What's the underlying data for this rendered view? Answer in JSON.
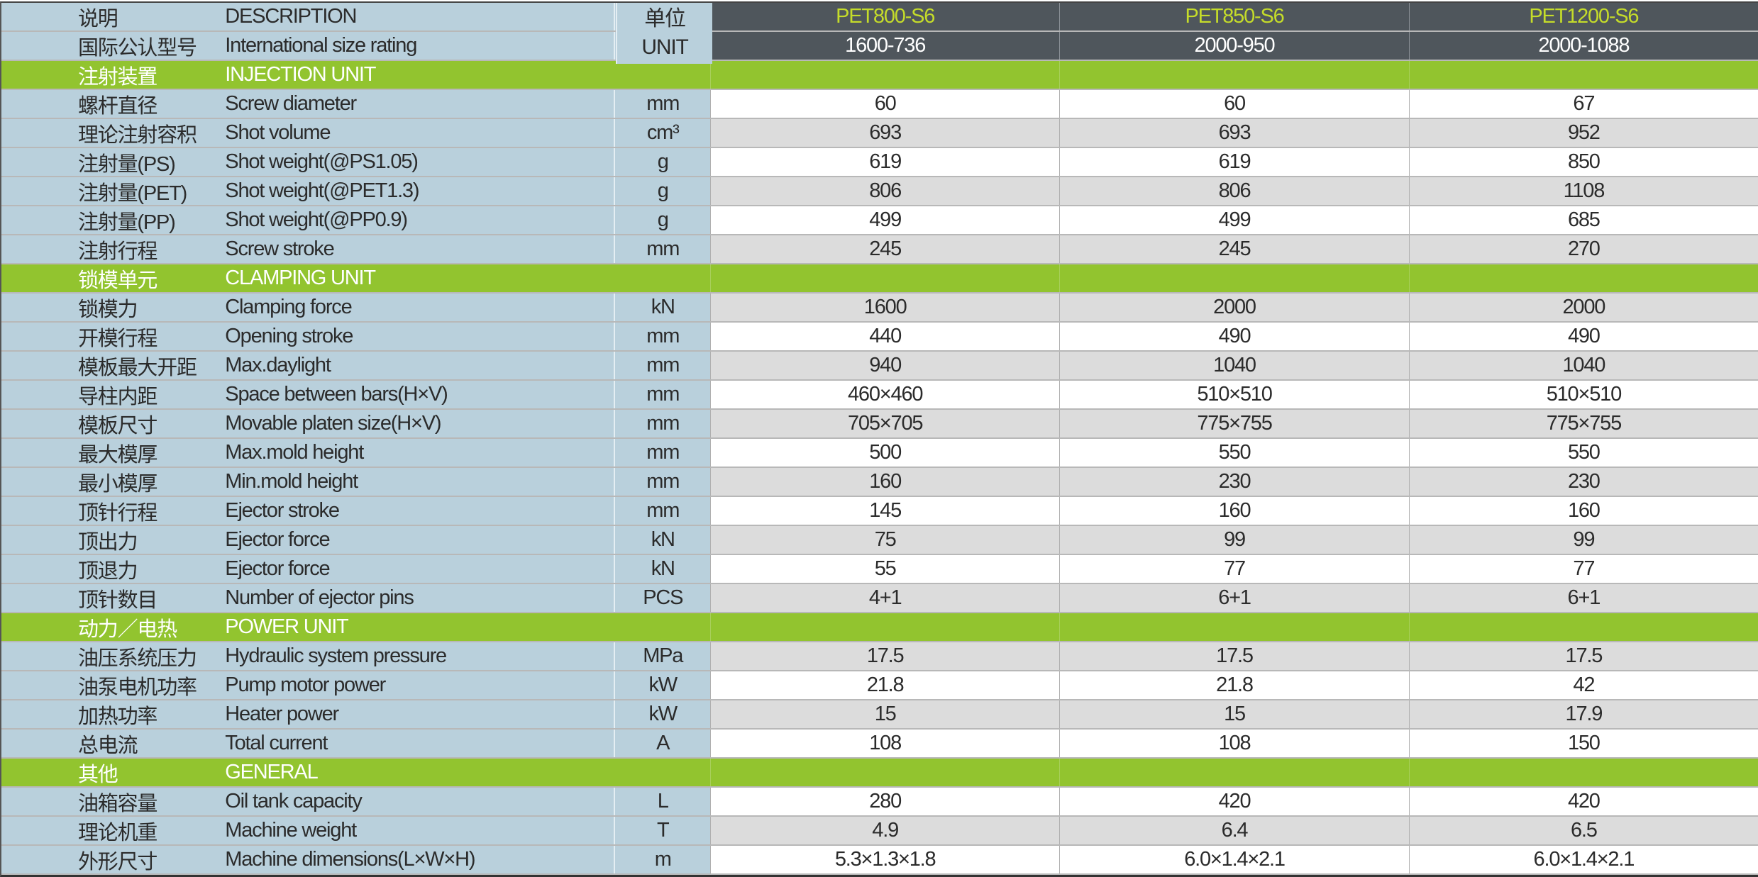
{
  "header": {
    "cn": "说明",
    "en": "DESCRIPTION",
    "unit_cn": "单位",
    "unit_en": "UNIT",
    "rating_cn": "国际公认型号",
    "rating_en": "International size rating",
    "models": [
      "PET800-S6",
      "PET850-S6",
      "PET1200-S6"
    ],
    "ratings": [
      "1600-736",
      "2000-950",
      "2000-1088"
    ]
  },
  "colors": {
    "label_bg": "#b9d0dc",
    "header_bg": "#4f565c",
    "section_bg": "#92c42f",
    "model_text": "#c5dc2a",
    "stripe": "#dcdcdc"
  },
  "sections": [
    {
      "cn": "注射装置",
      "en": "INJECTION UNIT",
      "rows": [
        {
          "cn": "螺杆直径",
          "en": "Screw diameter",
          "unit": "mm",
          "values": [
            "60",
            "60",
            "67"
          ]
        },
        {
          "cn": "理论注射容积",
          "en": "Shot volume",
          "unit": "cm³",
          "values": [
            "693",
            "693",
            "952"
          ]
        },
        {
          "cn": "注射量(PS)",
          "en": "Shot weight(@PS1.05)",
          "unit": "g",
          "values": [
            "619",
            "619",
            "850"
          ]
        },
        {
          "cn": "注射量(PET)",
          "en": "Shot weight(@PET1.3)",
          "unit": "g",
          "values": [
            "806",
            "806",
            "1108"
          ]
        },
        {
          "cn": "注射量(PP)",
          "en": "Shot weight(@PP0.9)",
          "unit": "g",
          "values": [
            "499",
            "499",
            "685"
          ]
        },
        {
          "cn": "注射行程",
          "en": "Screw stroke",
          "unit": "mm",
          "values": [
            "245",
            "245",
            "270"
          ]
        }
      ]
    },
    {
      "cn": "锁模单元",
      "en": "CLAMPING UNIT",
      "rows": [
        {
          "cn": "锁模力",
          "en": "Clamping force",
          "unit": "kN",
          "values": [
            "1600",
            "2000",
            "2000"
          ]
        },
        {
          "cn": "开模行程",
          "en": "Opening stroke",
          "unit": "mm",
          "values": [
            "440",
            "490",
            "490"
          ]
        },
        {
          "cn": "模板最大开距",
          "en": "Max.daylight",
          "unit": "mm",
          "values": [
            "940",
            "1040",
            "1040"
          ]
        },
        {
          "cn": "导柱内距",
          "en": "Space between bars(H×V)",
          "unit": "mm",
          "values": [
            "460×460",
            "510×510",
            "510×510"
          ]
        },
        {
          "cn": "模板尺寸",
          "en": "Movable platen size(H×V)",
          "unit": "mm",
          "values": [
            "705×705",
            "775×755",
            "775×755"
          ]
        },
        {
          "cn": "最大模厚",
          "en": "Max.mold height",
          "unit": "mm",
          "values": [
            "500",
            "550",
            "550"
          ]
        },
        {
          "cn": "最小模厚",
          "en": "Min.mold height",
          "unit": "mm",
          "values": [
            "160",
            "230",
            "230"
          ]
        },
        {
          "cn": "顶针行程",
          "en": "Ejector stroke",
          "unit": "mm",
          "values": [
            "145",
            "160",
            "160"
          ]
        },
        {
          "cn": "顶出力",
          "en": "Ejector force",
          "unit": "kN",
          "values": [
            "75",
            "99",
            "99"
          ]
        },
        {
          "cn": "顶退力",
          "en": "Ejector force",
          "unit": "kN",
          "values": [
            "55",
            "77",
            "77"
          ]
        },
        {
          "cn": "顶针数目",
          "en": "Number of ejector pins",
          "unit": "PCS",
          "values": [
            "4+1",
            "6+1",
            "6+1"
          ]
        }
      ]
    },
    {
      "cn": "动力／电热",
      "en": "POWER UNIT",
      "rows": [
        {
          "cn": "油压系统压力",
          "en": "Hydraulic system pressure",
          "unit": "MPa",
          "values": [
            "17.5",
            "17.5",
            "17.5"
          ]
        },
        {
          "cn": "油泵电机功率",
          "en": "Pump motor power",
          "unit": "kW",
          "values": [
            "21.8",
            "21.8",
            "42"
          ]
        },
        {
          "cn": "加热功率",
          "en": "Heater power",
          "unit": "kW",
          "values": [
            "15",
            "15",
            "17.9"
          ]
        },
        {
          "cn": "总电流",
          "en": "Total current",
          "unit": "A",
          "values": [
            "108",
            "108",
            "150"
          ]
        }
      ]
    },
    {
      "cn": "其他",
      "en": "GENERAL",
      "rows": [
        {
          "cn": "油箱容量",
          "en": "Oil tank capacity",
          "unit": "L",
          "values": [
            "280",
            "420",
            "420"
          ]
        },
        {
          "cn": "理论机重",
          "en": "Machine weight",
          "unit": "T",
          "values": [
            "4.9",
            "6.4",
            "6.5"
          ]
        },
        {
          "cn": "外形尺寸",
          "en": "Machine dimensions(L×W×H)",
          "unit": "m",
          "values": [
            "5.3×1.3×1.8",
            "6.0×1.4×2.1",
            "6.0×1.4×2.1"
          ]
        }
      ]
    }
  ]
}
